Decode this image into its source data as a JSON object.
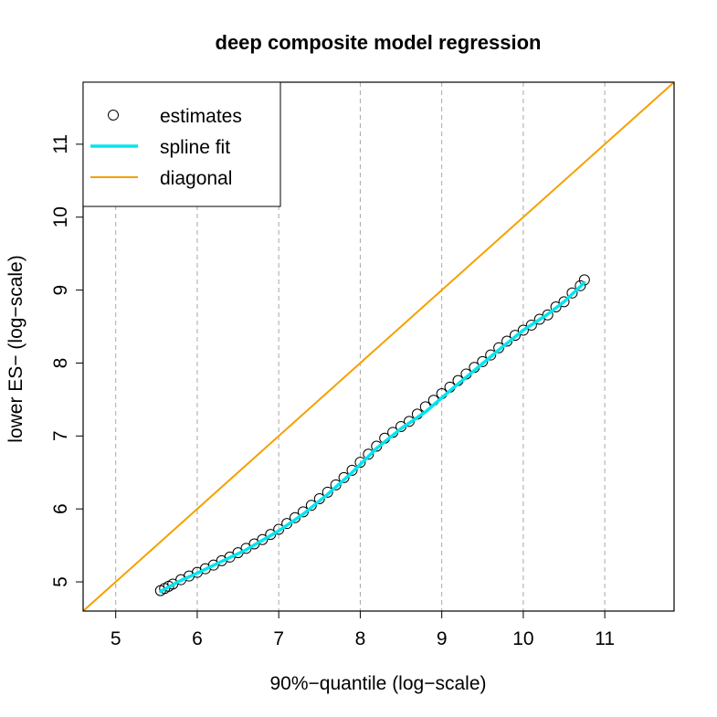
{
  "chart_data": {
    "type": "scatter",
    "title": "deep composite model regression",
    "xlabel": "90%−quantile (log−scale)",
    "ylabel": "lower ES− (log−scale)",
    "xlim": [
      4.6,
      11.85
    ],
    "ylim": [
      4.6,
      11.85
    ],
    "x_ticks": [
      "5",
      "6",
      "7",
      "8",
      "9",
      "10",
      "11"
    ],
    "y_ticks": [
      "5",
      "6",
      "7",
      "8",
      "9",
      "10",
      "11"
    ],
    "grid": "vertical dashed at x ticks",
    "legend_position": "top-left",
    "legend": [
      {
        "label": "estimates",
        "type": "point",
        "color": "#000000"
      },
      {
        "label": "spline fit",
        "type": "line",
        "color": "#00e5ee"
      },
      {
        "label": "diagonal",
        "type": "line",
        "color": "#f5a000"
      }
    ],
    "series": [
      {
        "name": "estimates",
        "x": [
          5.55,
          5.6,
          5.65,
          5.7,
          5.8,
          5.9,
          6.0,
          6.1,
          6.2,
          6.3,
          6.4,
          6.5,
          6.6,
          6.7,
          6.8,
          6.9,
          7.0,
          7.1,
          7.2,
          7.3,
          7.4,
          7.5,
          7.6,
          7.7,
          7.8,
          7.9,
          8.0,
          8.1,
          8.2,
          8.3,
          8.4,
          8.5,
          8.6,
          8.7,
          8.8,
          8.9,
          9.0,
          9.1,
          9.2,
          9.3,
          9.4,
          9.5,
          9.6,
          9.7,
          9.8,
          9.9,
          10.0,
          10.1,
          10.2,
          10.3,
          10.4,
          10.5,
          10.6,
          10.7,
          10.75
        ],
        "y": [
          4.88,
          4.91,
          4.94,
          4.97,
          5.03,
          5.08,
          5.13,
          5.18,
          5.23,
          5.29,
          5.34,
          5.4,
          5.46,
          5.52,
          5.58,
          5.65,
          5.72,
          5.8,
          5.88,
          5.96,
          6.05,
          6.14,
          6.23,
          6.33,
          6.43,
          6.53,
          6.64,
          6.75,
          6.86,
          6.97,
          7.05,
          7.13,
          7.2,
          7.3,
          7.4,
          7.49,
          7.58,
          7.67,
          7.76,
          7.85,
          7.94,
          8.02,
          8.11,
          8.21,
          8.3,
          8.38,
          8.45,
          8.52,
          8.6,
          8.66,
          8.77,
          8.84,
          8.96,
          9.06,
          9.14
        ]
      },
      {
        "name": "spline fit",
        "x": [
          5.55,
          5.8,
          6.0,
          6.3,
          6.6,
          7.0,
          7.3,
          7.6,
          7.9,
          8.2,
          8.5,
          8.8,
          9.1,
          9.4,
          9.7,
          10.0,
          10.3,
          10.5,
          10.75
        ],
        "y": [
          4.87,
          5.02,
          5.12,
          5.28,
          5.44,
          5.7,
          5.93,
          6.2,
          6.5,
          6.83,
          7.1,
          7.33,
          7.62,
          7.9,
          8.18,
          8.45,
          8.67,
          8.84,
          9.1
        ]
      },
      {
        "name": "diagonal",
        "x": [
          4.6,
          11.85
        ],
        "y": [
          4.6,
          11.85
        ]
      }
    ]
  }
}
